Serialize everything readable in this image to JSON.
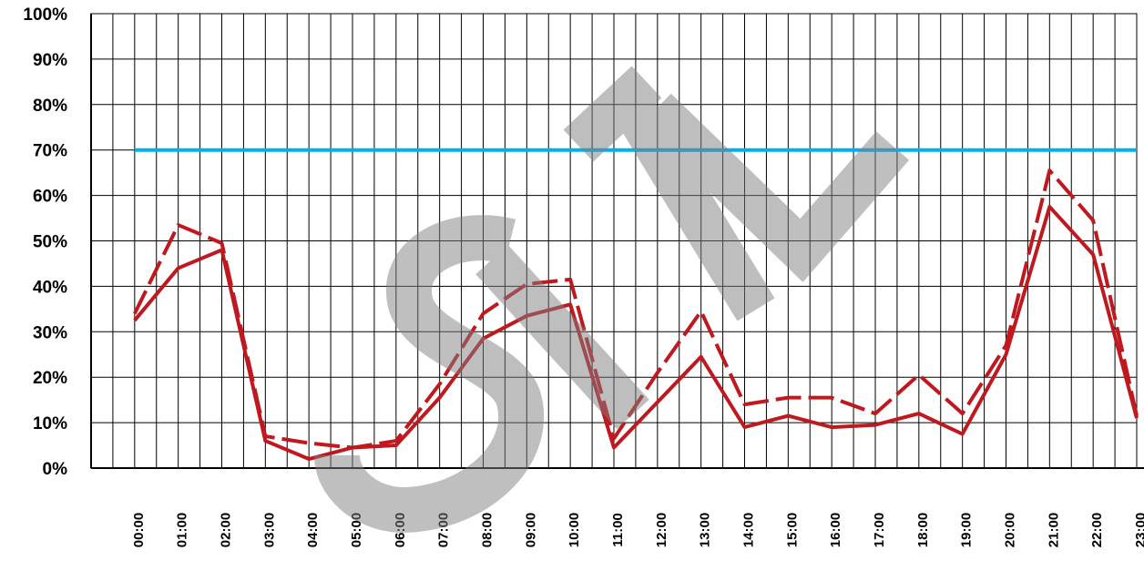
{
  "chart_data": {
    "type": "line",
    "title": "",
    "xlabel": "",
    "ylabel": "",
    "ylim": [
      0,
      100
    ],
    "y_ticks": [
      "0%",
      "10%",
      "20%",
      "30%",
      "40%",
      "50%",
      "60%",
      "70%",
      "80%",
      "90%",
      "100%"
    ],
    "categories": [
      "00:00",
      "01:00",
      "02:00",
      "03:00",
      "04:00",
      "05:00",
      "06:00",
      "07:00",
      "08:00",
      "09:00",
      "10:00",
      "11:00",
      "12:00",
      "13:00",
      "14:00",
      "15:00",
      "16:00",
      "17:00",
      "18:00",
      "19:00",
      "20:00",
      "21:00",
      "22:00",
      "23:00"
    ],
    "grid": true,
    "legend": "none",
    "series": [
      {
        "style": "solid",
        "color": "#c0181f",
        "values": [
          32.5,
          44,
          48,
          6,
          2,
          4.5,
          5,
          15.5,
          28.5,
          33.5,
          36,
          4.5,
          14.5,
          24.5,
          9,
          11.5,
          9,
          9.5,
          12,
          7.5,
          25,
          57.5,
          47,
          11
        ]
      },
      {
        "style": "dashed",
        "color": "#c0181f",
        "values": [
          34,
          53.5,
          49.5,
          7,
          5.5,
          4.5,
          6,
          18.5,
          34,
          40.5,
          41.5,
          6.5,
          21,
          34.5,
          14,
          15.5,
          15.5,
          12,
          20.5,
          12,
          27,
          65.5,
          54.5,
          11.5
        ]
      },
      {
        "style": "threshold",
        "color": "#00b0f0",
        "values": [
          70,
          70,
          70,
          70,
          70,
          70,
          70,
          70,
          70,
          70,
          70,
          70,
          70,
          70,
          70,
          70,
          70,
          70,
          70,
          70,
          70,
          70,
          70,
          70
        ]
      }
    ]
  },
  "watermark": {
    "text": "STL",
    "color": "#7f7f7f"
  }
}
